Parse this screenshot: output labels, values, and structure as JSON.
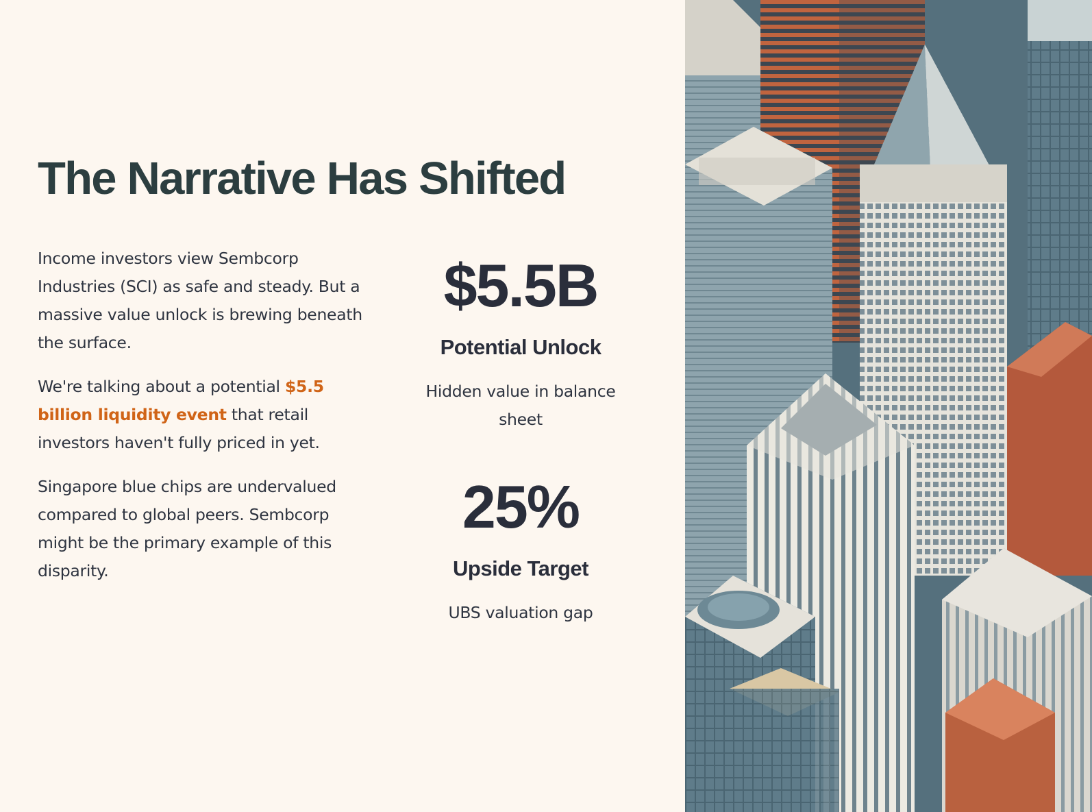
{
  "slide": {
    "title": "The Narrative Has Shifted",
    "body": {
      "para1": "Income investors view Sembcorp Industries (SCI) as safe and steady. But a massive value unlock is brewing beneath the surface.",
      "para2_before": "We're talking about a potential ",
      "para2_highlight": "$5.5 billion liquidity event",
      "para2_after": " that retail investors haven't fully priced in yet.",
      "para3": "Singapore blue chips are undervalued compared to global peers. Sembcorp might be the primary example of this disparity."
    },
    "stats": [
      {
        "value": "$5.5B",
        "label": "Potential Unlock",
        "description": "Hidden value in balance sheet"
      },
      {
        "value": "25%",
        "label": "Upside Target",
        "description": "UBS valuation gap"
      }
    ],
    "colors": {
      "background": "#fdf7f0",
      "title": "#2c3e40",
      "text": "#2e3440",
      "highlight": "#d06417"
    },
    "image": {
      "subject": "isometric-city-skyscrapers-illustration"
    }
  }
}
